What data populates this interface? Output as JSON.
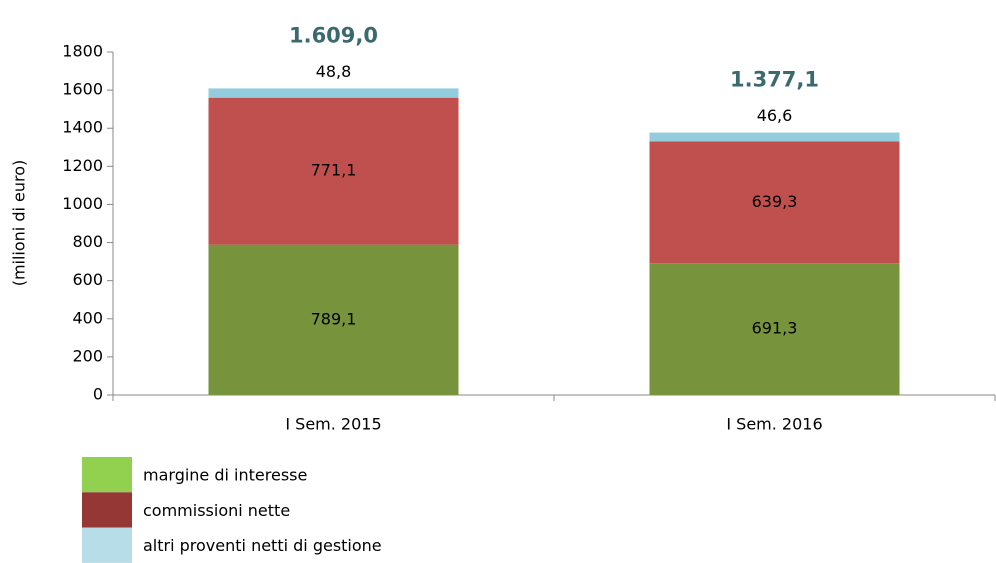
{
  "chart_data": {
    "type": "stacked_bar",
    "y_label": "(milioni di euro)",
    "categories": [
      "I Sem. 2015",
      "I Sem. 2016"
    ],
    "series": [
      {
        "name": "margine di interesse",
        "color": "#77933c",
        "legend_color": "#92d050",
        "values": [
          789.1,
          691.3
        ],
        "value_labels": [
          "789,1",
          "691,3"
        ]
      },
      {
        "name": "commissioni nette",
        "color": "#c0504d",
        "legend_color": "#953735",
        "values": [
          771.1,
          639.3
        ],
        "value_labels": [
          "771,1",
          "639,3"
        ]
      },
      {
        "name": "altri proventi netti di gestione",
        "color": "#93cddd",
        "legend_color": "#b7dde8",
        "values": [
          48.8,
          46.6
        ],
        "value_labels": [
          "48,8",
          "46,6"
        ]
      }
    ],
    "totals": [
      1609.0,
      1377.1
    ],
    "total_labels": [
      "1.609,0",
      "1.377,1"
    ],
    "total_color": "#3b6a6e",
    "ylim": [
      0,
      1800
    ],
    "yticks": [
      0,
      200,
      400,
      600,
      800,
      1000,
      1200,
      1400,
      1600,
      1800
    ],
    "grid": false
  }
}
